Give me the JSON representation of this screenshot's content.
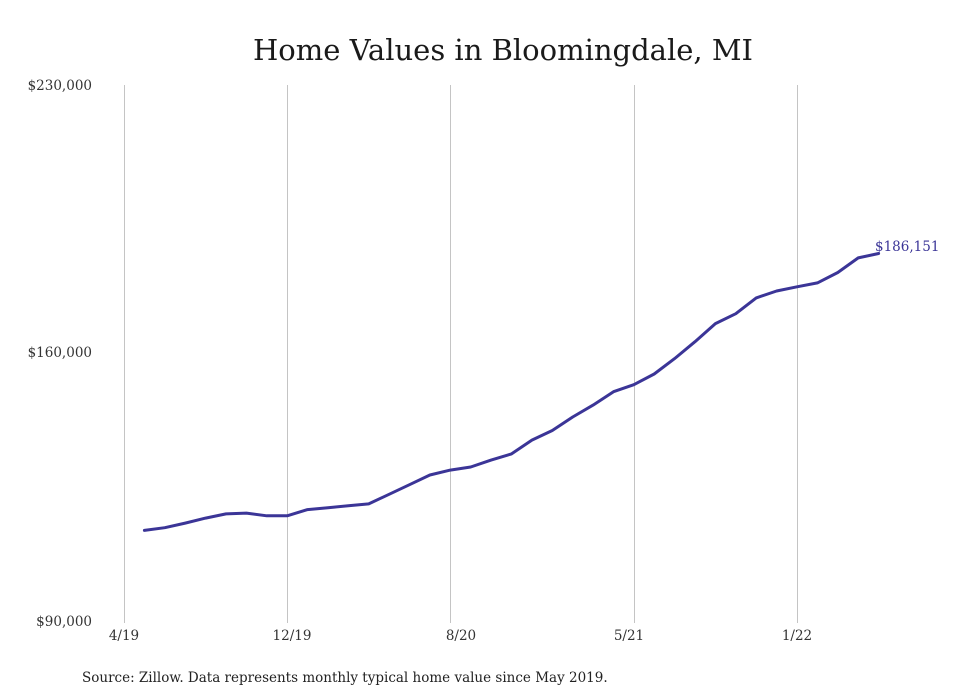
{
  "chart_data": {
    "type": "line",
    "title": "Home Values in Bloomingdale, MI",
    "xlabel": "",
    "ylabel": "",
    "ylim": [
      90000,
      230000
    ],
    "yticks": [
      "$230,000",
      "$160,000",
      "$90,000"
    ],
    "xticks": [
      "4/19",
      "12/19",
      "8/20",
      "5/21",
      "1/22"
    ],
    "grid": "vertical",
    "series": [
      {
        "color": "#3b3597",
        "x": [
          "2019-05",
          "2019-06",
          "2019-07",
          "2019-08",
          "2019-09",
          "2019-10",
          "2019-11",
          "2019-12",
          "2020-01",
          "2020-02",
          "2020-03",
          "2020-04",
          "2020-05",
          "2020-06",
          "2020-07",
          "2020-08",
          "2020-09",
          "2020-10",
          "2020-11",
          "2020-12",
          "2021-01",
          "2021-02",
          "2021-03",
          "2021-04",
          "2021-05",
          "2021-06",
          "2021-07",
          "2021-08",
          "2021-09",
          "2021-10",
          "2021-11",
          "2021-12",
          "2022-01",
          "2022-02",
          "2022-03",
          "2022-04",
          "2022-05"
        ],
        "values": [
          114100,
          114800,
          116000,
          117300,
          118400,
          118600,
          117900,
          117900,
          119500,
          120000,
          120500,
          121000,
          123500,
          126000,
          128500,
          129800,
          130600,
          132400,
          134000,
          137600,
          140100,
          143600,
          146700,
          150200,
          152000,
          154800,
          158800,
          163200,
          167900,
          170500,
          174600,
          176400,
          177500,
          178500,
          181200,
          185000,
          186151
        ]
      }
    ],
    "end_label": "$186,151",
    "source": "Source: Zillow. Data represents monthly typical home value since May 2019."
  }
}
